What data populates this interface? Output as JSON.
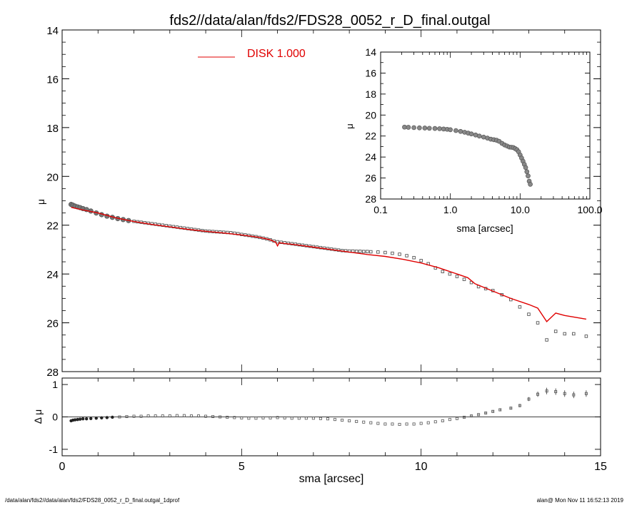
{
  "title": "fds2//data/alan/fds2/FDS28_0052_r_D_final.outgal",
  "footer_left": "/data/alan/fds2//data/alan/fds2/FDS28_0052_r_D_final.outgal_1dprof",
  "footer_right": "alan@  Mon Nov 11 16:52:13 2019",
  "colors": {
    "model": "#e00000",
    "data": "#555555",
    "axes": "#000000"
  },
  "chart_data": [
    {
      "id": "main-profile",
      "type": "scatter",
      "xlabel": "",
      "ylabel": "μ",
      "xlim": [
        0,
        15
      ],
      "ylim": [
        28,
        14
      ],
      "y_inverted": true,
      "yticks": [
        14,
        16,
        18,
        20,
        22,
        24,
        26,
        28
      ],
      "legend": {
        "label": "DISK  1.000",
        "placement": "top-center"
      },
      "series": [
        {
          "name": "data",
          "style": "markers",
          "x": [
            0.25,
            0.3,
            0.36,
            0.43,
            0.5,
            0.58,
            0.68,
            0.8,
            0.95,
            1.1,
            1.25,
            1.4,
            1.55,
            1.7,
            1.85,
            2.0,
            2.1,
            2.2,
            2.3,
            2.4,
            2.5,
            2.6,
            2.7,
            2.8,
            2.9,
            3.0,
            3.1,
            3.2,
            3.3,
            3.4,
            3.5,
            3.6,
            3.7,
            3.8,
            3.9,
            4.0,
            4.1,
            4.2,
            4.3,
            4.4,
            4.5,
            4.6,
            4.7,
            4.8,
            4.9,
            5.0,
            5.1,
            5.2,
            5.3,
            5.4,
            5.5,
            5.6,
            5.7,
            5.8,
            5.9,
            6.0,
            6.1,
            6.2,
            6.3,
            6.4,
            6.5,
            6.6,
            6.7,
            6.8,
            6.9,
            7.0,
            7.1,
            7.2,
            7.3,
            7.4,
            7.5,
            7.6,
            7.7,
            7.8,
            7.9,
            8.0,
            8.1,
            8.2,
            8.3,
            8.4,
            8.5,
            8.6,
            8.8,
            9.0,
            9.2,
            9.4,
            9.6,
            9.8,
            10.0,
            10.2,
            10.4,
            10.6,
            10.8,
            11.0,
            11.2,
            11.4,
            11.6,
            11.8,
            12.0,
            12.25,
            12.5,
            12.75,
            13.0,
            13.25,
            13.5,
            13.75,
            14.0,
            14.25,
            14.6
          ],
          "y": [
            21.15,
            21.18,
            21.22,
            21.25,
            21.28,
            21.32,
            21.36,
            21.42,
            21.5,
            21.57,
            21.63,
            21.68,
            21.73,
            21.77,
            21.81,
            21.84,
            21.86,
            21.88,
            21.9,
            21.92,
            21.94,
            21.96,
            21.98,
            22.0,
            22.02,
            22.04,
            22.06,
            22.08,
            22.1,
            22.12,
            22.14,
            22.16,
            22.18,
            22.2,
            22.22,
            22.24,
            22.25,
            22.26,
            22.27,
            22.28,
            22.29,
            22.3,
            22.31,
            22.33,
            22.35,
            22.38,
            22.4,
            22.42,
            22.45,
            22.47,
            22.5,
            22.53,
            22.56,
            22.6,
            22.65,
            22.68,
            22.7,
            22.72,
            22.74,
            22.76,
            22.78,
            22.8,
            22.82,
            22.84,
            22.86,
            22.88,
            22.9,
            22.92,
            22.94,
            22.96,
            22.98,
            23.0,
            23.02,
            23.04,
            23.05,
            23.06,
            23.06,
            23.07,
            23.07,
            23.08,
            23.08,
            23.09,
            23.1,
            23.12,
            23.15,
            23.19,
            23.25,
            23.33,
            23.45,
            23.58,
            23.75,
            23.9,
            24.0,
            24.1,
            24.22,
            24.35,
            24.52,
            24.6,
            24.68,
            24.85,
            25.05,
            25.35,
            25.65,
            26.0,
            26.7,
            26.35,
            26.45,
            26.45,
            26.55
          ]
        },
        {
          "name": "DISK  1.000",
          "style": "line",
          "x": [
            0.25,
            0.5,
            1.0,
            1.5,
            2.0,
            2.5,
            3.0,
            3.5,
            4.0,
            4.5,
            5.0,
            5.5,
            5.8,
            5.95,
            6.0,
            6.05,
            6.2,
            6.5,
            7.0,
            7.5,
            8.0,
            8.5,
            9.0,
            9.5,
            10.0,
            10.5,
            11.0,
            11.3,
            11.5,
            12.0,
            12.5,
            13.0,
            13.25,
            13.5,
            13.75,
            14.0,
            14.6
          ],
          "y": [
            21.27,
            21.35,
            21.5,
            21.7,
            21.85,
            21.97,
            22.07,
            22.17,
            22.25,
            22.32,
            22.4,
            22.5,
            22.6,
            22.7,
            22.85,
            22.72,
            22.75,
            22.8,
            22.9,
            23.0,
            23.1,
            23.2,
            23.28,
            23.4,
            23.55,
            23.75,
            24.0,
            24.15,
            24.4,
            24.7,
            25.0,
            25.25,
            25.4,
            25.95,
            25.6,
            25.7,
            25.85
          ]
        }
      ]
    },
    {
      "id": "inset-log-profile",
      "type": "scatter",
      "xlabel": "sma [arcsec]",
      "ylabel": "μ",
      "x_scale": "log",
      "xlim": [
        0.1,
        100
      ],
      "xtick_labels": [
        "0.1",
        "1.0",
        "10.0",
        "100.0"
      ],
      "ylim": [
        28,
        14
      ],
      "y_inverted": true,
      "yticks": [
        14,
        16,
        18,
        20,
        22,
        24,
        26,
        28
      ],
      "series": [
        {
          "name": "data",
          "style": "markers",
          "x": [
            0.22,
            0.25,
            0.3,
            0.36,
            0.43,
            0.5,
            0.6,
            0.7,
            0.8,
            0.9,
            1.0,
            1.2,
            1.4,
            1.6,
            1.8,
            2.0,
            2.3,
            2.6,
            3.0,
            3.4,
            3.8,
            4.2,
            4.6,
            5.0,
            5.5,
            6.0,
            6.5,
            7.0,
            7.5,
            8.0,
            8.5,
            9.0,
            9.5,
            10.0,
            10.5,
            11.0,
            11.5,
            12.0,
            12.5,
            13.0,
            13.5,
            14.0
          ],
          "y": [
            21.15,
            21.17,
            21.2,
            21.22,
            21.24,
            21.26,
            21.28,
            21.3,
            21.33,
            21.36,
            21.4,
            21.48,
            21.56,
            21.64,
            21.72,
            21.8,
            21.9,
            22.0,
            22.1,
            22.2,
            22.3,
            22.35,
            22.4,
            22.5,
            22.7,
            22.85,
            22.95,
            23.05,
            23.07,
            23.1,
            23.2,
            23.3,
            23.5,
            23.8,
            24.1,
            24.4,
            24.7,
            25.0,
            25.4,
            25.8,
            26.3,
            26.6
          ]
        }
      ]
    },
    {
      "id": "residuals",
      "type": "scatter",
      "xlabel": "sma [arcsec]",
      "ylabel": "Δ μ",
      "xlim": [
        0,
        15
      ],
      "xticks": [
        0,
        5,
        10,
        15
      ],
      "ylim": [
        -1.2,
        1.2
      ],
      "yticks": [
        1,
        0,
        -1
      ],
      "reference_line": 0,
      "series": [
        {
          "name": "residual",
          "style": "markers-errorbars",
          "x": [
            0.25,
            0.3,
            0.36,
            0.43,
            0.5,
            0.58,
            0.68,
            0.8,
            0.95,
            1.1,
            1.25,
            1.4,
            1.6,
            1.8,
            2.0,
            2.2,
            2.4,
            2.6,
            2.8,
            3.0,
            3.2,
            3.4,
            3.6,
            3.8,
            4.0,
            4.2,
            4.4,
            4.6,
            4.8,
            5.0,
            5.2,
            5.4,
            5.6,
            5.8,
            6.0,
            6.2,
            6.4,
            6.6,
            6.8,
            7.0,
            7.2,
            7.4,
            7.6,
            7.8,
            8.0,
            8.2,
            8.4,
            8.6,
            8.8,
            9.0,
            9.2,
            9.4,
            9.6,
            9.8,
            10.0,
            10.2,
            10.4,
            10.6,
            10.8,
            11.0,
            11.2,
            11.4,
            11.6,
            11.8,
            12.0,
            12.2,
            12.5,
            12.75,
            13.0,
            13.25,
            13.5,
            13.75,
            14.0,
            14.25,
            14.6
          ],
          "y": [
            -0.12,
            -0.1,
            -0.09,
            -0.08,
            -0.07,
            -0.06,
            -0.06,
            -0.05,
            -0.04,
            -0.03,
            -0.02,
            -0.01,
            0.0,
            0.01,
            0.02,
            0.02,
            0.03,
            0.03,
            0.03,
            0.03,
            0.04,
            0.04,
            0.03,
            0.03,
            0.02,
            0.01,
            0.0,
            -0.01,
            -0.02,
            -0.03,
            -0.04,
            -0.04,
            -0.03,
            -0.03,
            -0.02,
            -0.03,
            -0.04,
            -0.04,
            -0.04,
            -0.04,
            -0.05,
            -0.06,
            -0.08,
            -0.1,
            -0.12,
            -0.14,
            -0.16,
            -0.18,
            -0.2,
            -0.22,
            -0.22,
            -0.23,
            -0.22,
            -0.22,
            -0.2,
            -0.18,
            -0.15,
            -0.12,
            -0.08,
            -0.05,
            -0.01,
            0.03,
            0.07,
            0.12,
            0.17,
            0.22,
            0.27,
            0.35,
            0.55,
            0.7,
            0.8,
            0.78,
            0.72,
            0.68,
            0.72
          ],
          "err": [
            0.01,
            0.01,
            0.01,
            0.01,
            0.01,
            0.01,
            0.01,
            0.01,
            0.01,
            0.01,
            0.01,
            0.01,
            0.01,
            0.01,
            0.01,
            0.01,
            0.01,
            0.01,
            0.01,
            0.01,
            0.01,
            0.01,
            0.01,
            0.01,
            0.01,
            0.01,
            0.01,
            0.01,
            0.01,
            0.01,
            0.01,
            0.01,
            0.01,
            0.01,
            0.01,
            0.01,
            0.01,
            0.01,
            0.01,
            0.01,
            0.01,
            0.01,
            0.01,
            0.01,
            0.01,
            0.01,
            0.01,
            0.01,
            0.01,
            0.01,
            0.01,
            0.01,
            0.01,
            0.01,
            0.01,
            0.01,
            0.01,
            0.01,
            0.01,
            0.01,
            0.02,
            0.02,
            0.02,
            0.03,
            0.03,
            0.03,
            0.04,
            0.05,
            0.06,
            0.08,
            0.1,
            0.1,
            0.1,
            0.1,
            0.1
          ]
        }
      ]
    }
  ]
}
